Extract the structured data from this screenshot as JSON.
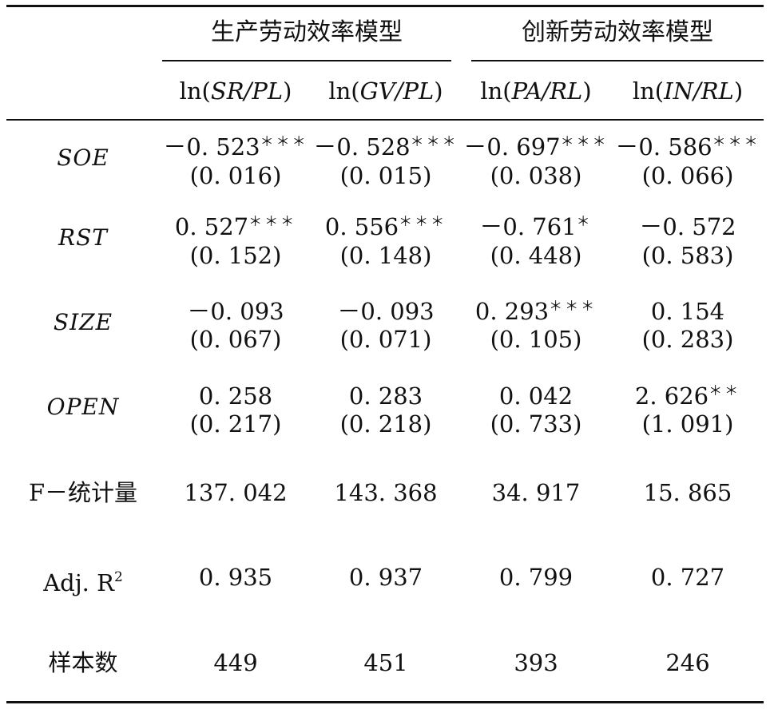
{
  "group_headers": [
    "生产劳动效率模型",
    "创新劳动效率模型"
  ],
  "columns": [
    {
      "pre": "ln(",
      "var": "SR/PL",
      "post": ")"
    },
    {
      "pre": "ln(",
      "var": "GV/PL",
      "post": ")"
    },
    {
      "pre": "ln(",
      "var": "PA/RL",
      "post": ")"
    },
    {
      "pre": "ln(",
      "var": "IN/RL",
      "post": ")"
    }
  ],
  "coef_rows": [
    {
      "label": "SOE",
      "cells": [
        {
          "coef": "－0. 523",
          "stars": "＊＊＊",
          "se": "(0. 016)"
        },
        {
          "coef": "－0. 528",
          "stars": "＊＊＊",
          "se": "(0. 015)"
        },
        {
          "coef": "－0. 697",
          "stars": "＊＊＊",
          "se": "(0. 038)"
        },
        {
          "coef": "－0. 586",
          "stars": "＊＊＊",
          "se": "(0. 066)"
        }
      ]
    },
    {
      "label": "RST",
      "cells": [
        {
          "coef": "0. 527",
          "stars": "＊＊＊",
          "se": "(0. 152)"
        },
        {
          "coef": "0. 556",
          "stars": "＊＊＊",
          "se": "(0. 148)"
        },
        {
          "coef": "－0. 761",
          "stars": "＊",
          "se": "(0. 448)"
        },
        {
          "coef": "－0. 572",
          "stars": "",
          "se": "(0. 583)"
        }
      ]
    },
    {
      "label": "SIZE",
      "cells": [
        {
          "coef": "－0. 093",
          "stars": "",
          "se": "(0. 067)"
        },
        {
          "coef": "－0. 093",
          "stars": "",
          "se": "(0. 071)"
        },
        {
          "coef": "0. 293",
          "stars": "＊＊＊",
          "se": "(0. 105)"
        },
        {
          "coef": "0. 154",
          "stars": "",
          "se": "(0. 283)"
        }
      ]
    },
    {
      "label": "OPEN",
      "cells": [
        {
          "coef": "0. 258",
          "stars": "",
          "se": "(0. 217)"
        },
        {
          "coef": "0. 283",
          "stars": "",
          "se": "(0. 218)"
        },
        {
          "coef": "0. 042",
          "stars": "",
          "se": "(0. 733)"
        },
        {
          "coef": "2. 626",
          "stars": "＊＊",
          "se": "(1. 091)"
        }
      ]
    }
  ],
  "stat_rows": [
    {
      "label": "F－统计量",
      "values": [
        "137. 042",
        "143. 368",
        "34. 917",
        "15. 865"
      ]
    },
    {
      "label": "Adj. R",
      "sup": "2",
      "values": [
        "0. 935",
        "0. 937",
        "0. 799",
        "0. 727"
      ]
    },
    {
      "label": "样本数",
      "values": [
        "449",
        "451",
        "393",
        "246"
      ]
    }
  ]
}
